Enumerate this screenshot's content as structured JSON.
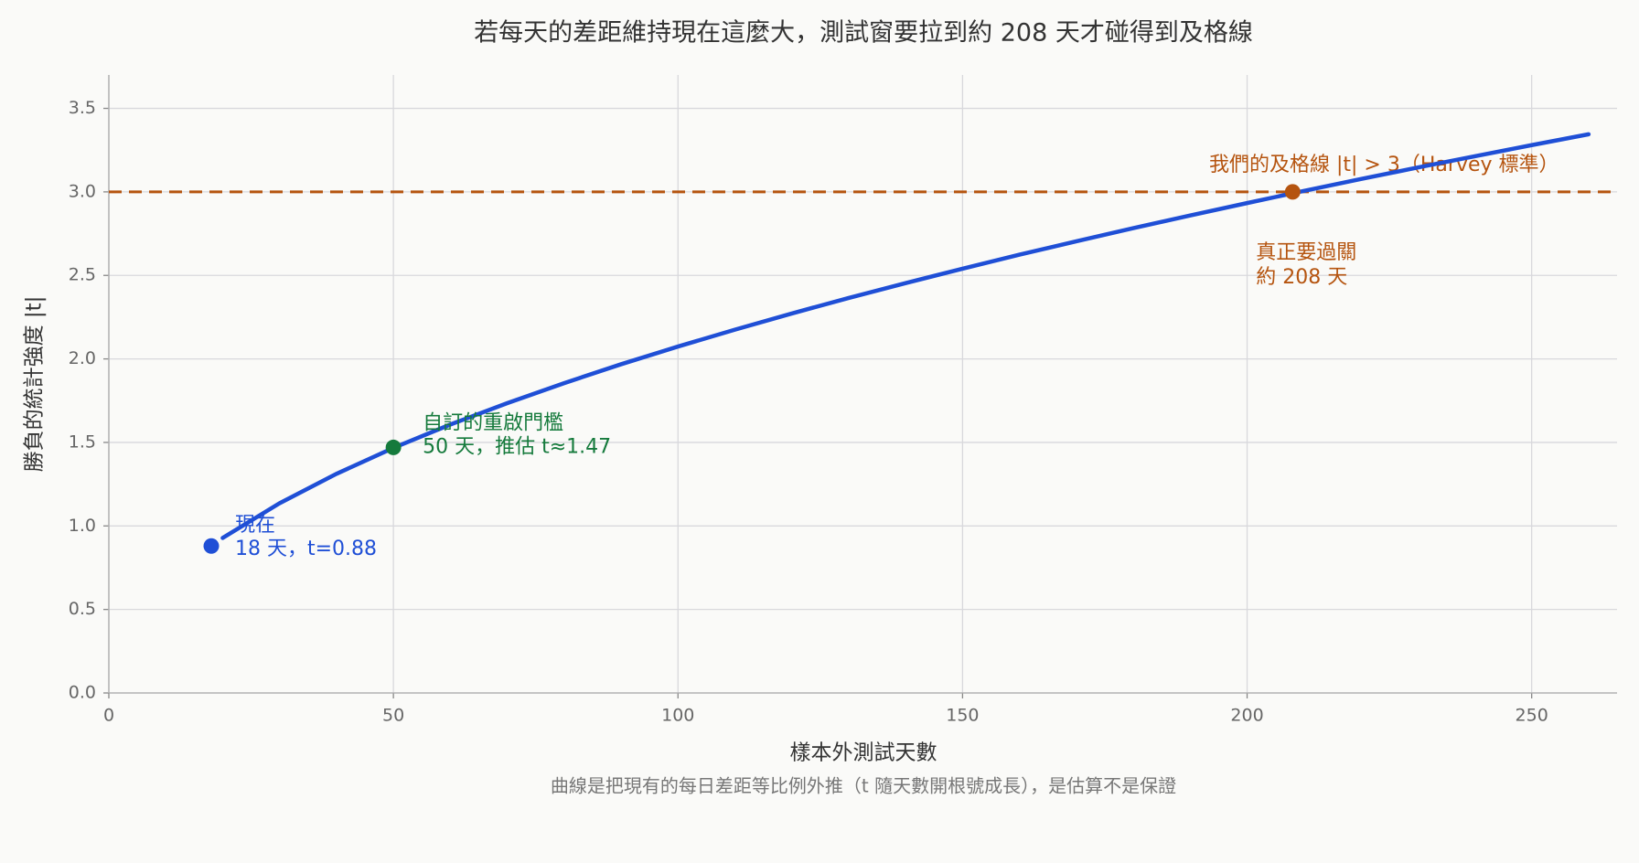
{
  "chart_data": {
    "type": "line",
    "title": "若每天的差距維持現在這麼大，測試窗要拉到約 208 天才碰得到及格線",
    "x_label": "樣本外測試天數",
    "y_label": "勝負的統計強度 |t|",
    "note": "曲線是把現有的每日差距等比例外推（t 隨天數開根號成長），是估算不是保證",
    "xlim": [
      0,
      265
    ],
    "ylim": [
      0,
      3.7
    ],
    "xticks": [
      0,
      50,
      100,
      150,
      200,
      250
    ],
    "yticks": [
      {
        "value": 0,
        "label": "0.0"
      },
      0.5,
      {
        "value": 1,
        "label": "1.0"
      },
      1.5,
      {
        "value": 2,
        "label": "2.0"
      },
      2.5,
      {
        "value": 3,
        "label": "3.0"
      },
      3.5
    ],
    "grid": true,
    "series": [
      {
        "color": "#1f4fd6",
        "x": [
          20,
          30,
          40,
          50,
          60,
          70,
          80,
          90,
          100,
          110,
          120,
          130,
          140,
          150,
          160,
          170,
          180,
          190,
          200,
          210,
          220,
          230,
          240,
          250,
          260
        ],
        "values": [
          0.928,
          1.136,
          1.312,
          1.467,
          1.607,
          1.735,
          1.855,
          1.968,
          2.074,
          2.175,
          2.272,
          2.365,
          2.454,
          2.54,
          2.624,
          2.704,
          2.783,
          2.859,
          2.933,
          3.006,
          3.077,
          3.146,
          3.213,
          3.28,
          3.345
        ]
      }
    ],
    "reference_line": {
      "y": 3,
      "color": "#b5540f",
      "label": "我們的及格線 |t| > 3（Harvey 標準）"
    },
    "points": [
      {
        "x": 18,
        "y": 0.88,
        "color": "#1f4fd6",
        "labels": [
          "現在",
          "18 天，t=0.88"
        ]
      },
      {
        "x": 50,
        "y": 1.47,
        "color": "#157a3c",
        "labels": [
          "自訂的重啟門檻",
          "50 天，推估 t≈1.47"
        ]
      },
      {
        "x": 208,
        "y": 3,
        "color": "#b5540f",
        "labels": [
          "真正要過關",
          "約 208 天"
        ]
      }
    ]
  }
}
